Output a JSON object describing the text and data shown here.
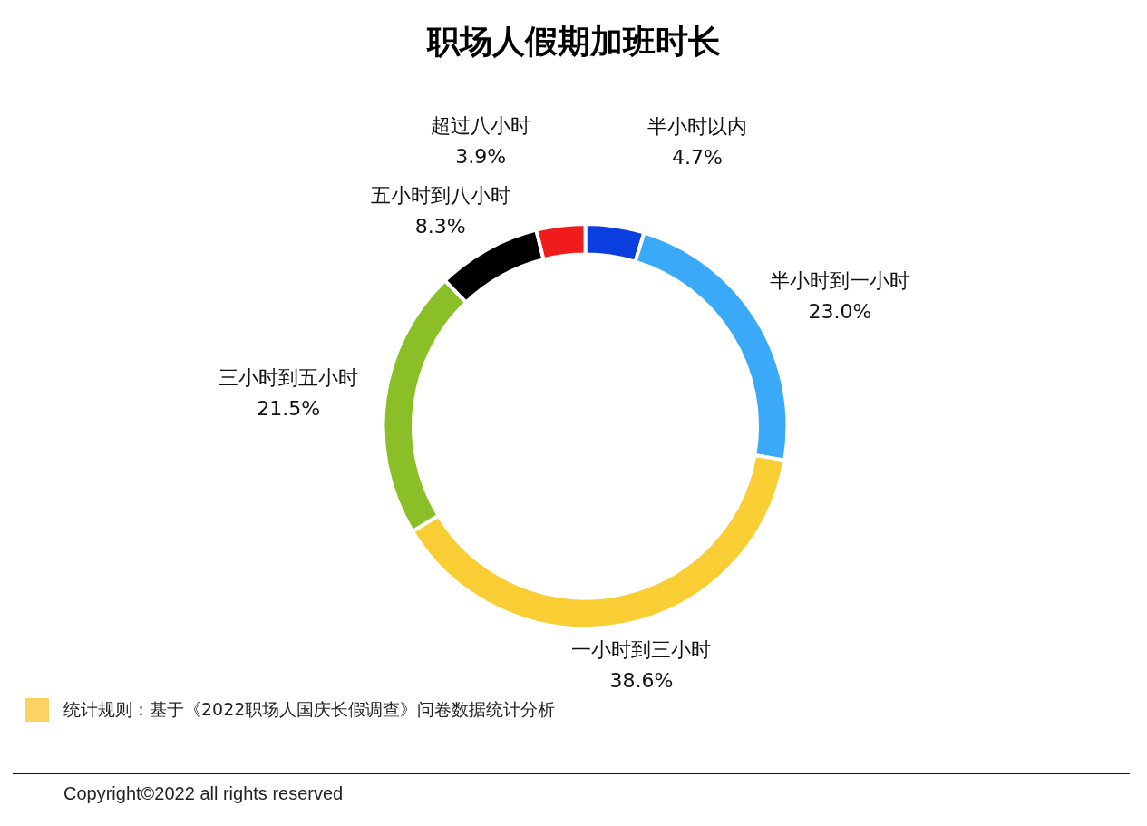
{
  "chart_data": {
    "type": "donut",
    "title": "职场人假期加班时长",
    "categories": [
      "半小时以内",
      "半小时到一小时",
      "一小时到三小时",
      "三小时到五小时",
      "五小时到八小时",
      "超过八小时"
    ],
    "values": [
      4.7,
      23.0,
      38.6,
      21.5,
      8.3,
      3.9
    ],
    "colors": [
      "#0b3fe0",
      "#3aa9f8",
      "#f9cd34",
      "#8abf27",
      "#000000",
      "#f01c1c"
    ],
    "value_labels": [
      "4.7%",
      "23.0%",
      "38.6%",
      "21.5%",
      "8.3%",
      "3.9%"
    ],
    "legend": false,
    "annotations": [
      "统计规则：基于《2022职场人国庆长假调查》问卷数据统计分析",
      "Copyright©2022 all rights reserved"
    ]
  }
}
